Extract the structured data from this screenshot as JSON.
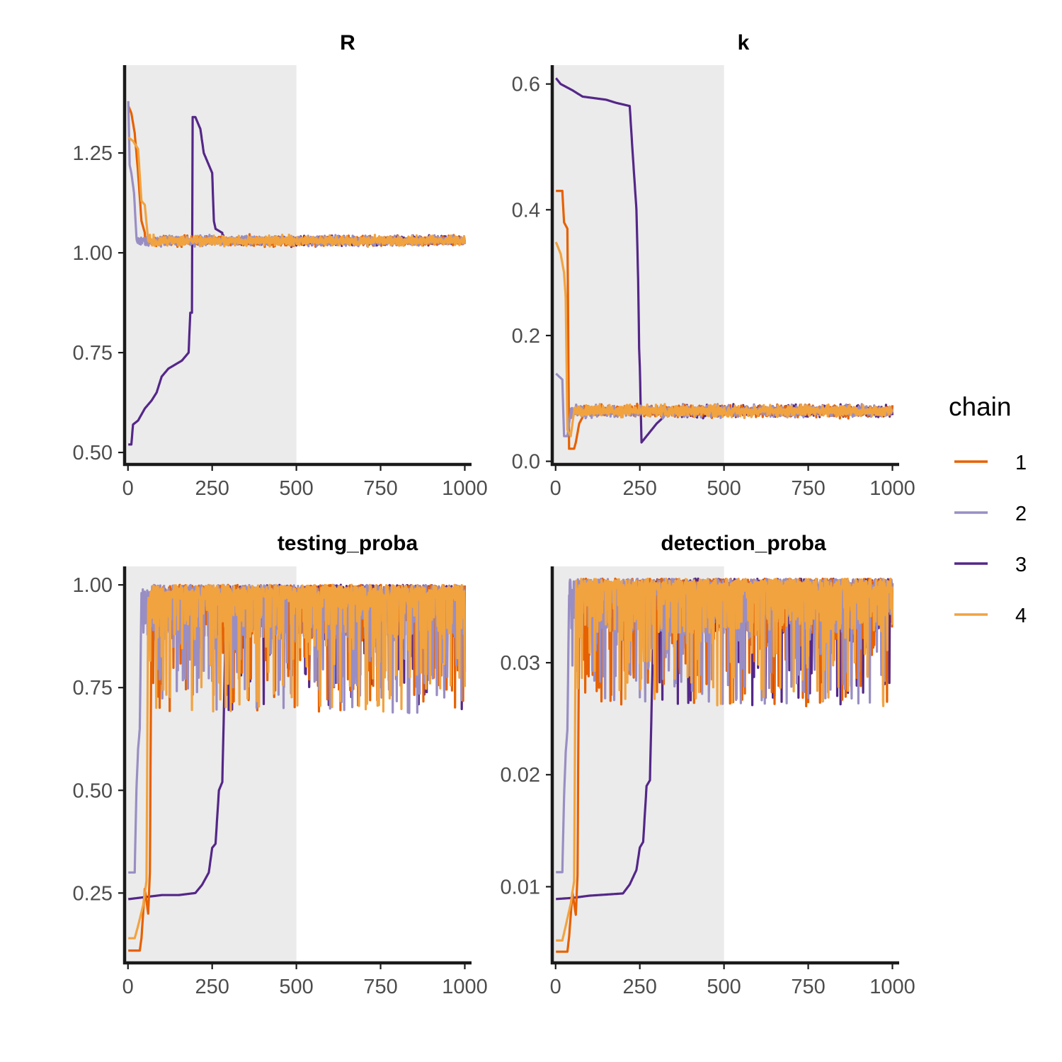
{
  "chart_data": [
    {
      "type": "line",
      "title": "R",
      "xlabel": "",
      "ylabel": "",
      "xlim": [
        -10,
        1020
      ],
      "ylim": [
        0.47,
        1.47
      ],
      "x_ticks": [
        0,
        250,
        500,
        750,
        1000
      ],
      "x_tick_labels": [
        "0",
        "250",
        "500",
        "750",
        "1000"
      ],
      "y_ticks": [
        0.5,
        0.75,
        1.0,
        1.25
      ],
      "y_tick_labels": [
        "0.50",
        "0.75",
        "1.00",
        "1.25"
      ],
      "warmup_shaded_until": 500,
      "series": [
        {
          "chain": "1",
          "color": "#E66101",
          "start": 1.37,
          "plateau_end": 45,
          "steps": [
            [
              0,
              1.37
            ],
            [
              10,
              1.35
            ],
            [
              20,
              1.3
            ],
            [
              30,
              1.2
            ],
            [
              40,
              1.08
            ],
            [
              50,
              1.05
            ]
          ],
          "stationary_mean": 1.03,
          "noise": 0.008
        },
        {
          "chain": "2",
          "color": "#998EC3",
          "steps": [
            [
              0,
              1.42
            ],
            [
              5,
              1.22
            ],
            [
              10,
              1.2
            ],
            [
              18,
              1.15
            ],
            [
              25,
              1.04
            ]
          ],
          "stationary_mean": 1.03,
          "noise": 0.008
        },
        {
          "chain": "3",
          "color": "#542788",
          "steps": [
            [
              0,
              0.52
            ],
            [
              10,
              0.52
            ],
            [
              15,
              0.57
            ],
            [
              30,
              0.58
            ],
            [
              50,
              0.61
            ],
            [
              70,
              0.63
            ],
            [
              85,
              0.65
            ],
            [
              100,
              0.69
            ],
            [
              120,
              0.71
            ],
            [
              140,
              0.72
            ],
            [
              160,
              0.73
            ],
            [
              170,
              0.74
            ],
            [
              180,
              0.75
            ],
            [
              185,
              0.85
            ],
            [
              190,
              0.85
            ],
            [
              192,
              1.34
            ],
            [
              200,
              1.34
            ],
            [
              215,
              1.31
            ],
            [
              225,
              1.25
            ],
            [
              240,
              1.22
            ],
            [
              250,
              1.2
            ],
            [
              255,
              1.08
            ],
            [
              260,
              1.06
            ],
            [
              280,
              1.05
            ]
          ],
          "stationary_mean": 1.03,
          "noise": 0.008
        },
        {
          "chain": "4",
          "color": "#F1A340",
          "steps": [
            [
              0,
              1.29
            ],
            [
              15,
              1.28
            ],
            [
              30,
              1.26
            ],
            [
              40,
              1.13
            ],
            [
              50,
              1.12
            ],
            [
              60,
              1.03
            ]
          ],
          "stationary_mean": 1.03,
          "noise": 0.008
        }
      ]
    },
    {
      "type": "line",
      "title": "k",
      "xlabel": "",
      "ylabel": "",
      "xlim": [
        -10,
        1020
      ],
      "ylim": [
        -0.005,
        0.63
      ],
      "x_ticks": [
        0,
        250,
        500,
        750,
        1000
      ],
      "x_tick_labels": [
        "0",
        "250",
        "500",
        "750",
        "1000"
      ],
      "y_ticks": [
        0.0,
        0.2,
        0.4,
        0.6
      ],
      "y_tick_labels": [
        "0.0",
        "0.2",
        "0.4",
        "0.6"
      ],
      "warmup_shaded_until": 500,
      "series": [
        {
          "chain": "1",
          "color": "#E66101",
          "steps": [
            [
              0,
              0.43
            ],
            [
              20,
              0.43
            ],
            [
              25,
              0.38
            ],
            [
              35,
              0.37
            ],
            [
              40,
              0.02
            ],
            [
              55,
              0.02
            ],
            [
              60,
              0.03
            ],
            [
              70,
              0.06
            ],
            [
              80,
              0.07
            ]
          ],
          "stationary_mean": 0.08,
          "noise": 0.006
        },
        {
          "chain": "2",
          "color": "#998EC3",
          "steps": [
            [
              0,
              0.14
            ],
            [
              20,
              0.13
            ],
            [
              25,
              0.04
            ],
            [
              35,
              0.04
            ],
            [
              45,
              0.08
            ]
          ],
          "stationary_mean": 0.08,
          "noise": 0.006
        },
        {
          "chain": "3",
          "color": "#542788",
          "steps": [
            [
              0,
              0.61
            ],
            [
              15,
              0.6
            ],
            [
              50,
              0.59
            ],
            [
              80,
              0.58
            ],
            [
              150,
              0.575
            ],
            [
              180,
              0.57
            ],
            [
              220,
              0.565
            ],
            [
              230,
              0.48
            ],
            [
              240,
              0.4
            ],
            [
              245,
              0.29
            ],
            [
              248,
              0.18
            ],
            [
              250,
              0.15
            ],
            [
              255,
              0.03
            ],
            [
              270,
              0.04
            ],
            [
              300,
              0.06
            ],
            [
              320,
              0.07
            ]
          ],
          "stationary_mean": 0.08,
          "noise": 0.006
        },
        {
          "chain": "4",
          "color": "#F1A340",
          "steps": [
            [
              0,
              0.35
            ],
            [
              15,
              0.33
            ],
            [
              25,
              0.3
            ],
            [
              30,
              0.26
            ],
            [
              35,
              0.05
            ],
            [
              45,
              0.04
            ],
            [
              55,
              0.08
            ]
          ],
          "stationary_mean": 0.08,
          "noise": 0.006
        }
      ]
    },
    {
      "type": "line",
      "title": "testing_proba",
      "xlabel": "",
      "ylabel": "",
      "xlim": [
        -10,
        1020
      ],
      "ylim": [
        0.08,
        1.045
      ],
      "x_ticks": [
        0,
        250,
        500,
        750,
        1000
      ],
      "x_tick_labels": [
        "0",
        "250",
        "500",
        "750",
        "1000"
      ],
      "y_ticks": [
        0.25,
        0.5,
        0.75,
        1.0
      ],
      "y_tick_labels": [
        "0.25",
        "0.50",
        "0.75",
        "1.00"
      ],
      "warmup_shaded_until": 500,
      "series": [
        {
          "chain": "1",
          "color": "#E66101",
          "steps": [
            [
              0,
              0.11
            ],
            [
              35,
              0.11
            ],
            [
              40,
              0.14
            ],
            [
              50,
              0.26
            ],
            [
              60,
              0.2
            ],
            [
              65,
              0.3
            ],
            [
              70,
              0.95
            ]
          ],
          "stationary_mean": 0.93,
          "noise": 0.06
        },
        {
          "chain": "2",
          "color": "#998EC3",
          "steps": [
            [
              0,
              0.3
            ],
            [
              20,
              0.3
            ],
            [
              25,
              0.5
            ],
            [
              30,
              0.6
            ],
            [
              35,
              0.65
            ],
            [
              40,
              0.98
            ]
          ],
          "stationary_mean": 0.93,
          "noise": 0.06
        },
        {
          "chain": "3",
          "color": "#542788",
          "steps": [
            [
              0,
              0.235
            ],
            [
              50,
              0.24
            ],
            [
              100,
              0.245
            ],
            [
              150,
              0.245
            ],
            [
              200,
              0.25
            ],
            [
              220,
              0.27
            ],
            [
              240,
              0.3
            ],
            [
              250,
              0.36
            ],
            [
              260,
              0.37
            ],
            [
              270,
              0.5
            ],
            [
              280,
              0.52
            ],
            [
              285,
              0.7
            ],
            [
              290,
              0.9
            ]
          ],
          "stationary_mean": 0.93,
          "noise": 0.06
        },
        {
          "chain": "4",
          "color": "#F1A340",
          "steps": [
            [
              0,
              0.14
            ],
            [
              20,
              0.14
            ],
            [
              30,
              0.17
            ],
            [
              45,
              0.22
            ],
            [
              55,
              0.28
            ],
            [
              60,
              0.95
            ]
          ],
          "stationary_mean": 0.93,
          "noise": 0.06
        }
      ]
    },
    {
      "type": "line",
      "title": "detection_proba",
      "xlabel": "",
      "ylabel": "",
      "xlim": [
        -10,
        1020
      ],
      "ylim": [
        0.0032,
        0.0386
      ],
      "x_ticks": [
        0,
        250,
        500,
        750,
        1000
      ],
      "x_tick_labels": [
        "0",
        "250",
        "500",
        "750",
        "1000"
      ],
      "y_ticks": [
        0.01,
        0.02,
        0.03
      ],
      "y_tick_labels": [
        "0.01",
        "0.02",
        "0.03"
      ],
      "warmup_shaded_until": 500,
      "series": [
        {
          "chain": "1",
          "color": "#E66101",
          "steps": [
            [
              0,
              0.0042
            ],
            [
              35,
              0.0042
            ],
            [
              40,
              0.0055
            ],
            [
              50,
              0.0095
            ],
            [
              60,
              0.0075
            ],
            [
              65,
              0.011
            ],
            [
              70,
              0.035
            ]
          ],
          "stationary_mean": 0.0345,
          "noise": 0.0022
        },
        {
          "chain": "2",
          "color": "#998EC3",
          "steps": [
            [
              0,
              0.0113
            ],
            [
              20,
              0.0113
            ],
            [
              25,
              0.018
            ],
            [
              30,
              0.022
            ],
            [
              35,
              0.024
            ],
            [
              40,
              0.036
            ]
          ],
          "stationary_mean": 0.0345,
          "noise": 0.0022
        },
        {
          "chain": "3",
          "color": "#542788",
          "steps": [
            [
              0,
              0.0089
            ],
            [
              50,
              0.009
            ],
            [
              100,
              0.0092
            ],
            [
              150,
              0.0093
            ],
            [
              200,
              0.0094
            ],
            [
              220,
              0.0102
            ],
            [
              240,
              0.0115
            ],
            [
              250,
              0.0135
            ],
            [
              260,
              0.014
            ],
            [
              270,
              0.019
            ],
            [
              280,
              0.0195
            ],
            [
              285,
              0.026
            ],
            [
              290,
              0.033
            ]
          ],
          "stationary_mean": 0.0345,
          "noise": 0.0022
        },
        {
          "chain": "4",
          "color": "#F1A340",
          "steps": [
            [
              0,
              0.0052
            ],
            [
              20,
              0.0052
            ],
            [
              30,
              0.0065
            ],
            [
              45,
              0.0085
            ],
            [
              55,
              0.0105
            ],
            [
              60,
              0.035
            ]
          ],
          "stationary_mean": 0.0345,
          "noise": 0.0022
        }
      ]
    }
  ],
  "legend": {
    "title": "chain",
    "items": [
      {
        "label": "1",
        "color": "#E66101"
      },
      {
        "label": "2",
        "color": "#998EC3"
      },
      {
        "label": "3",
        "color": "#542788"
      },
      {
        "label": "4",
        "color": "#F1A340"
      }
    ]
  },
  "colors": {
    "warmup_shade": "#EBEBEB",
    "axis": "#1A1A1A",
    "tick_text": "#4D4D4D"
  }
}
